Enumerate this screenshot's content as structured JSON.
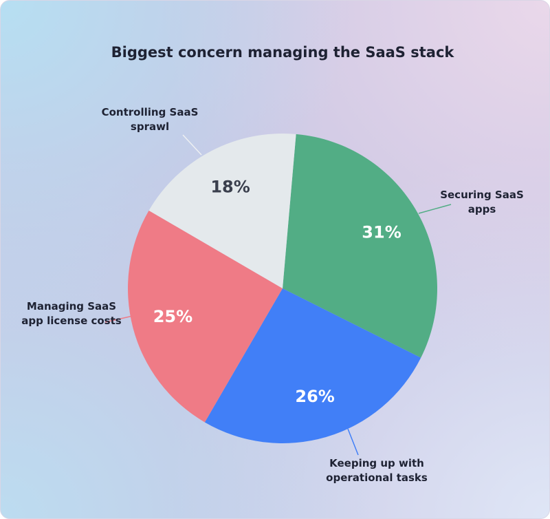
{
  "chart_data": {
    "type": "pie",
    "title": "Biggest concern managing the SaaS stack",
    "categories": [
      "Securing SaaS apps",
      "Keeping up with operational tasks",
      "Managing SaaS app license costs",
      "Controlling SaaS sprawl"
    ],
    "values": [
      31,
      26,
      25,
      18
    ],
    "value_labels": [
      "31%",
      "26%",
      "25%",
      "18%"
    ],
    "colors": [
      "#52ad85",
      "#417ff7",
      "#ef7b86",
      "#e4e9ec"
    ],
    "label_colors": [
      "#ffffff",
      "#ffffff",
      "#ffffff",
      "#3a3f4d"
    ]
  }
}
